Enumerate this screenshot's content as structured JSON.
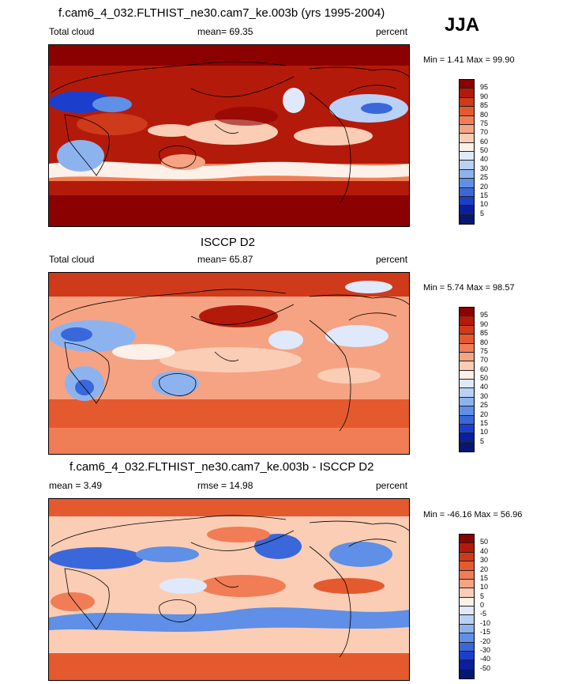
{
  "season": "JJA",
  "panels": [
    {
      "title": "f.cam6_4_032.FLTHIST_ne30.cam7_ke.003b (yrs 1995-2004)",
      "left_label": "Total cloud",
      "center_label": "mean=  69.35",
      "right_label": "percent",
      "minmax": "Min =   1.41 Max =  99.90",
      "colorbar_levels": [
        "95",
        "90",
        "85",
        "80",
        "75",
        "70",
        "60",
        "50",
        "40",
        "30",
        "25",
        "20",
        "15",
        "10",
        "5"
      ],
      "colorbar_colors": [
        "#8b0000",
        "#b41a0a",
        "#cf3a1a",
        "#e45a2e",
        "#f07d55",
        "#f6a383",
        "#fbcdb5",
        "#fdf0e8",
        "#dfe9fb",
        "#b9d1f7",
        "#8db3ef",
        "#5f8fe6",
        "#3a68db",
        "#1b3fcc",
        "#0a1f9e",
        "#061673"
      ]
    },
    {
      "title": "ISCCP D2",
      "left_label": "Total cloud",
      "center_label": "mean=  65.87",
      "right_label": "percent",
      "minmax": "Min =   5.74 Max =  98.57",
      "colorbar_levels": [
        "95",
        "90",
        "85",
        "80",
        "75",
        "70",
        "60",
        "50",
        "40",
        "30",
        "25",
        "20",
        "15",
        "10",
        "5"
      ],
      "colorbar_colors": [
        "#8b0000",
        "#b41a0a",
        "#cf3a1a",
        "#e45a2e",
        "#f07d55",
        "#f6a383",
        "#fbcdb5",
        "#fdf0e8",
        "#dfe9fb",
        "#b9d1f7",
        "#8db3ef",
        "#5f8fe6",
        "#3a68db",
        "#1b3fcc",
        "#0a1f9e",
        "#061673"
      ]
    },
    {
      "title": "f.cam6_4_032.FLTHIST_ne30.cam7_ke.003b - ISCCP D2",
      "left_label": "mean =   3.49",
      "center_label": "rmse =  14.98",
      "right_label": "percent",
      "minmax": "Min = -46.16 Max =  56.96",
      "colorbar_levels": [
        "50",
        "40",
        "30",
        "20",
        "15",
        "10",
        "5",
        "0",
        "-5",
        "-10",
        "-15",
        "-20",
        "-30",
        "-40",
        "-50"
      ],
      "colorbar_colors": [
        "#8b0000",
        "#b41a0a",
        "#cf3a1a",
        "#e45a2e",
        "#f07d55",
        "#f6a383",
        "#fbcdb5",
        "#fdf0e8",
        "#dfe9fb",
        "#b9d1f7",
        "#8db3ef",
        "#5f8fe6",
        "#3a68db",
        "#1b3fcc",
        "#0a1f9e",
        "#061673"
      ]
    }
  ]
}
